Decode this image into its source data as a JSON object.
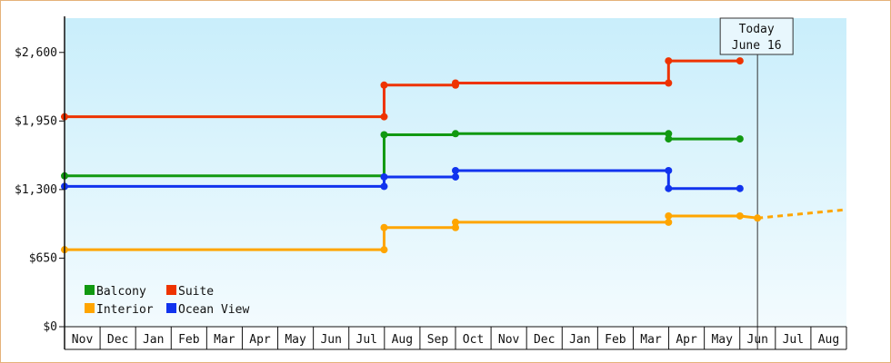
{
  "chart_data": {
    "type": "line",
    "step": true,
    "ylim": [
      0,
      2925
    ],
    "y_ticks": [
      0,
      650,
      1300,
      1950,
      2600
    ],
    "y_tick_labels": [
      "$0",
      "$650",
      "$1,300",
      "$1,950",
      "$2,600"
    ],
    "x_ticks": [
      "Nov",
      "Dec",
      "Jan",
      "Feb",
      "Mar",
      "Apr",
      "May",
      "Jun",
      "Jul",
      "Aug",
      "Sep",
      "Oct",
      "Nov",
      "Dec",
      "Jan",
      "Feb",
      "Mar",
      "Apr",
      "May",
      "Jun",
      "Jul",
      "Aug"
    ],
    "x_range": [
      "2021-11-01",
      "2023-08-31"
    ],
    "today": {
      "label_line1": "Today",
      "label_line2": "June 16",
      "date": "2023-06-16"
    },
    "legend_placement": "bottom-left",
    "grid": false,
    "background": {
      "top": "#c9eefb",
      "bottom": "#f3fbfe"
    },
    "series": [
      {
        "name": "Balcony",
        "color": "#119911",
        "points": [
          [
            "2021-11-01",
            1430
          ],
          [
            "2022-08-01",
            1430
          ],
          [
            "2022-08-01",
            1820
          ],
          [
            "2022-10-01",
            1820
          ],
          [
            "2022-10-01",
            1830
          ],
          [
            "2023-04-01",
            1830
          ],
          [
            "2023-04-01",
            1780
          ],
          [
            "2023-06-01",
            1780
          ]
        ],
        "markers": [
          [
            "2021-11-01",
            1430
          ],
          [
            "2022-08-01",
            1820
          ],
          [
            "2022-10-01",
            1830
          ],
          [
            "2023-04-01",
            1830
          ],
          [
            "2023-04-01",
            1780
          ],
          [
            "2023-06-01",
            1780
          ]
        ]
      },
      {
        "name": "Suite",
        "color": "#ee3300",
        "points": [
          [
            "2021-11-01",
            1990
          ],
          [
            "2022-08-01",
            1990
          ],
          [
            "2022-08-01",
            2290
          ],
          [
            "2022-10-01",
            2290
          ],
          [
            "2022-10-01",
            2310
          ],
          [
            "2023-04-01",
            2310
          ],
          [
            "2023-04-01",
            2520
          ],
          [
            "2023-06-01",
            2520
          ]
        ],
        "markers": [
          [
            "2021-11-01",
            1990
          ],
          [
            "2022-08-01",
            1990
          ],
          [
            "2022-08-01",
            2290
          ],
          [
            "2022-10-01",
            2290
          ],
          [
            "2022-10-01",
            2310
          ],
          [
            "2023-04-01",
            2310
          ],
          [
            "2023-04-01",
            2520
          ],
          [
            "2023-06-01",
            2520
          ]
        ]
      },
      {
        "name": "Interior",
        "color": "#ffa500",
        "points": [
          [
            "2021-11-01",
            730
          ],
          [
            "2022-08-01",
            730
          ],
          [
            "2022-08-01",
            940
          ],
          [
            "2022-10-01",
            940
          ],
          [
            "2022-10-01",
            990
          ],
          [
            "2023-04-01",
            990
          ],
          [
            "2023-04-01",
            1050
          ],
          [
            "2023-06-01",
            1050
          ],
          [
            "2023-06-16",
            1030
          ]
        ],
        "markers": [
          [
            "2021-11-01",
            730
          ],
          [
            "2022-08-01",
            730
          ],
          [
            "2022-08-01",
            940
          ],
          [
            "2022-10-01",
            940
          ],
          [
            "2022-10-01",
            990
          ],
          [
            "2023-04-01",
            990
          ],
          [
            "2023-04-01",
            1050
          ],
          [
            "2023-06-01",
            1050
          ],
          [
            "2023-06-16",
            1030
          ]
        ],
        "projection": [
          [
            "2023-06-16",
            1030
          ],
          [
            "2023-08-31",
            1110
          ]
        ]
      },
      {
        "name": "Ocean View",
        "color": "#1133ee",
        "points": [
          [
            "2021-11-01",
            1330
          ],
          [
            "2022-08-01",
            1330
          ],
          [
            "2022-08-01",
            1420
          ],
          [
            "2022-10-01",
            1420
          ],
          [
            "2022-10-01",
            1480
          ],
          [
            "2023-04-01",
            1480
          ],
          [
            "2023-04-01",
            1310
          ],
          [
            "2023-06-01",
            1310
          ]
        ],
        "markers": [
          [
            "2021-11-01",
            1330
          ],
          [
            "2022-08-01",
            1330
          ],
          [
            "2022-08-01",
            1420
          ],
          [
            "2022-10-01",
            1420
          ],
          [
            "2022-10-01",
            1480
          ],
          [
            "2023-04-01",
            1480
          ],
          [
            "2023-04-01",
            1310
          ],
          [
            "2023-06-01",
            1310
          ]
        ]
      }
    ],
    "legend": [
      {
        "name": "Balcony",
        "color": "#119911"
      },
      {
        "name": "Suite",
        "color": "#ee3300"
      },
      {
        "name": "Interior",
        "color": "#ffa500"
      },
      {
        "name": "Ocean View",
        "color": "#1133ee"
      }
    ]
  }
}
